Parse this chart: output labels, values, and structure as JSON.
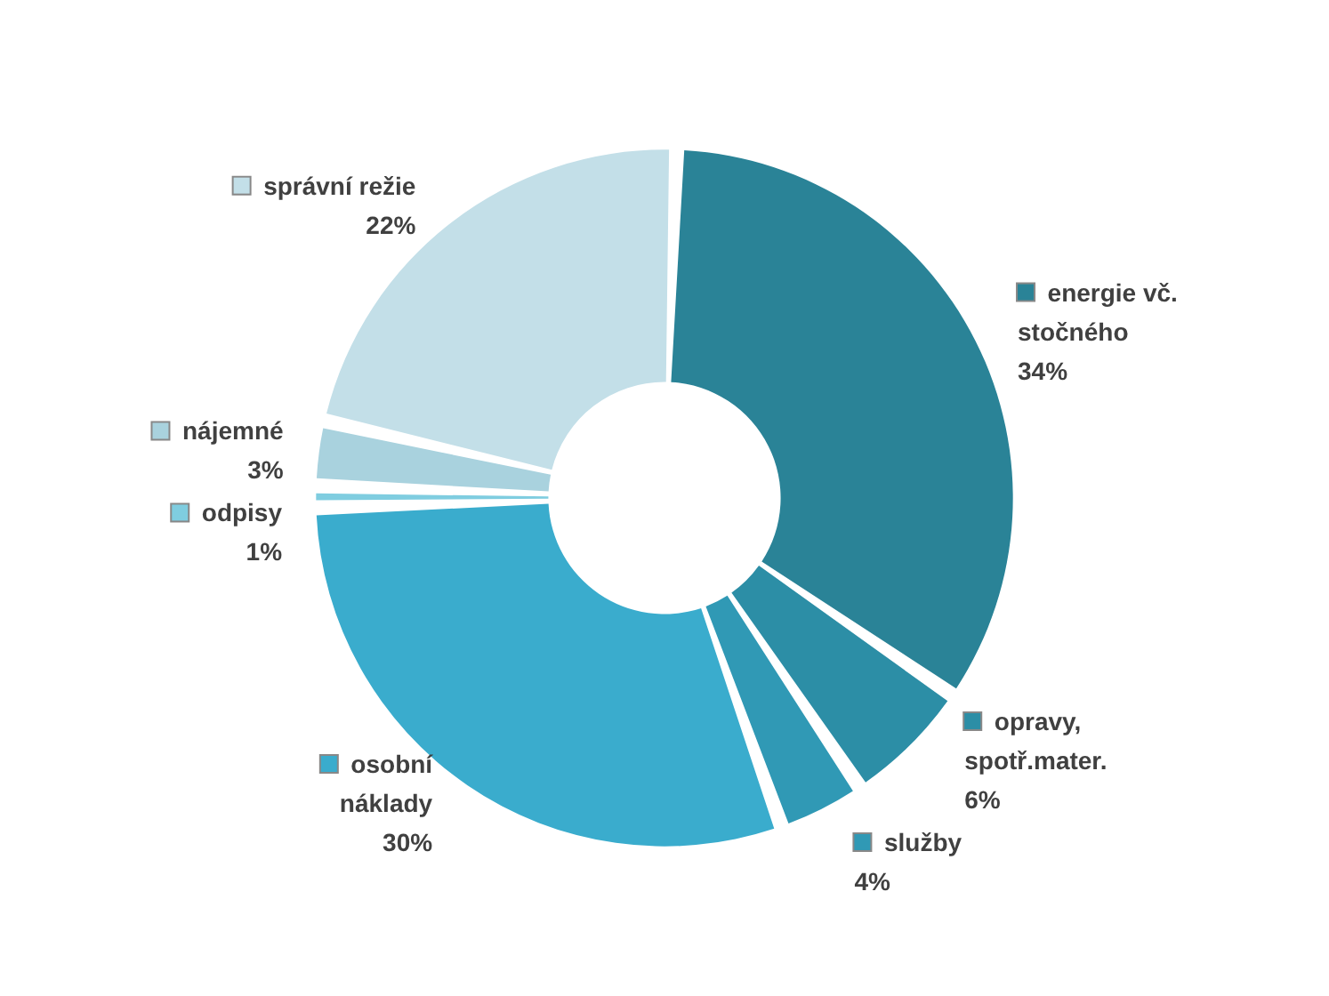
{
  "chart_data": {
    "type": "donut",
    "categories": [
      "energie vč. stočného",
      "opravy, spotř.mater.",
      "služby",
      "osobní náklady",
      "odpisy",
      "nájemné",
      "správní režie"
    ],
    "values": [
      34,
      6,
      4,
      30,
      1,
      3,
      22
    ],
    "colors": [
      "#2a8397",
      "#2c8ea6",
      "#3099b5",
      "#3aaccd",
      "#7fcde0",
      "#a9d2de",
      "#c3dfe8"
    ],
    "value_labels": [
      "34%",
      "6%",
      "4%",
      "30%",
      "1%",
      "3%",
      "22%"
    ],
    "legend": true
  }
}
